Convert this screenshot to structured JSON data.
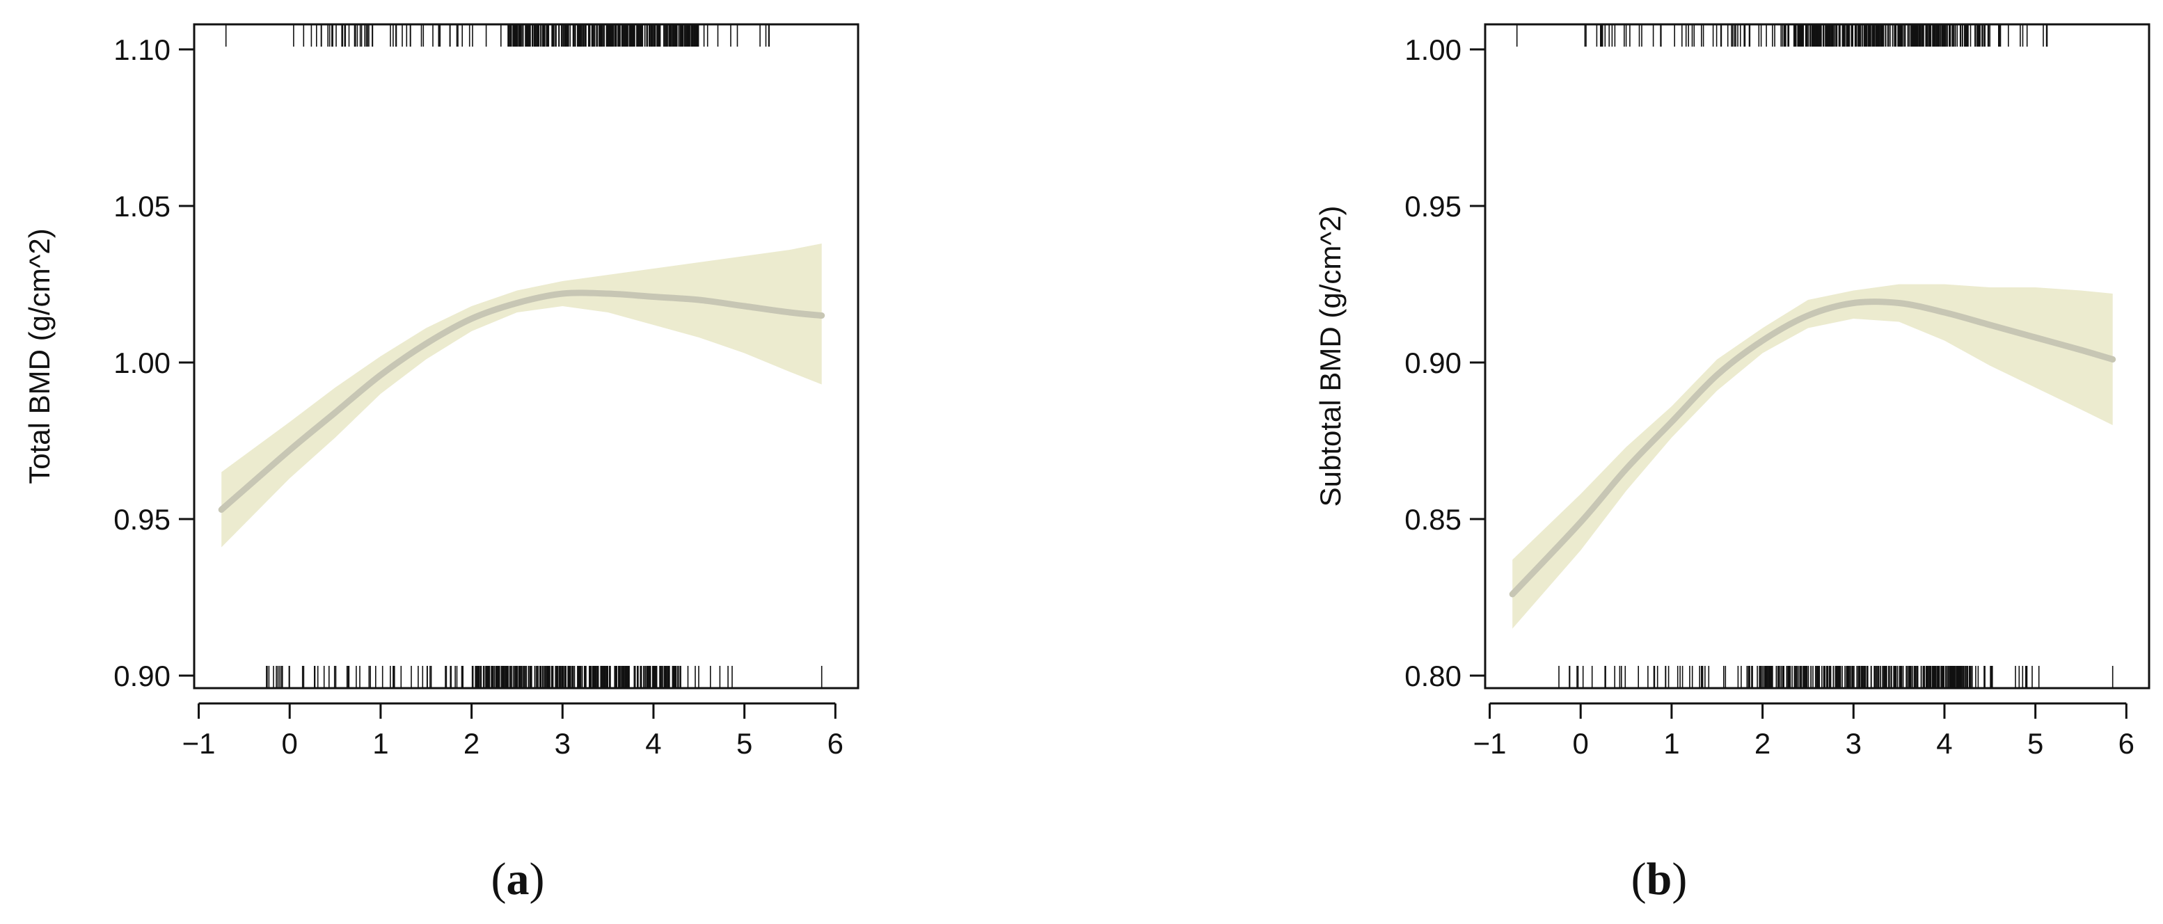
{
  "chart_data": [
    {
      "type": "line",
      "panel_label": "a",
      "xlabel": "",
      "ylabel": "Total BMD (g/cm^2)",
      "xlim": [
        -1.05,
        6.25
      ],
      "ylim": [
        0.896,
        1.108
      ],
      "x_ticks": [
        -1,
        0,
        1,
        2,
        3,
        4,
        5,
        6
      ],
      "x_tick_labels": [
        "−1",
        "0",
        "1",
        "2",
        "3",
        "4",
        "5",
        "6"
      ],
      "y_ticks": [
        0.9,
        0.95,
        1.0,
        1.05,
        1.1
      ],
      "y_tick_labels": [
        "0.90",
        "0.95",
        "1.00",
        "1.05",
        "1.10"
      ],
      "colors": {
        "fit": "#c7c6b4",
        "ci_band": "#ecebcf"
      },
      "series": [
        {
          "x": [
            -0.75,
            0,
            0.5,
            1,
            1.5,
            2,
            2.5,
            3,
            3.5,
            4,
            4.5,
            5,
            5.5,
            5.85
          ],
          "y": [
            0.953,
            0.972,
            0.984,
            0.996,
            1.006,
            1.014,
            1.019,
            1.022,
            1.022,
            1.021,
            1.02,
            1.018,
            1.016,
            1.015
          ],
          "lower": [
            0.941,
            0.963,
            0.976,
            0.99,
            1.001,
            1.01,
            1.016,
            1.018,
            1.016,
            1.012,
            1.008,
            1.003,
            0.997,
            0.993
          ],
          "upper": [
            0.965,
            0.981,
            0.992,
            1.002,
            1.011,
            1.018,
            1.023,
            1.026,
            1.028,
            1.03,
            1.032,
            1.034,
            1.036,
            1.038
          ]
        }
      ],
      "rug": {
        "top_range": [
          0,
          5.3
        ],
        "top_dense": [
          2.4,
          4.5
        ],
        "top_outliers": [
          -0.7
        ],
        "bottom_range": [
          -0.3,
          5.0
        ],
        "bottom_dense": [
          2.0,
          4.3
        ],
        "bottom_outliers": [
          5.85
        ]
      }
    },
    {
      "type": "line",
      "panel_label": "b",
      "xlabel": "",
      "ylabel": "Subtotal BMD (g/cm^2)",
      "xlim": [
        -1.05,
        6.25
      ],
      "ylim": [
        0.796,
        1.008
      ],
      "x_ticks": [
        -1,
        0,
        1,
        2,
        3,
        4,
        5,
        6
      ],
      "x_tick_labels": [
        "−1",
        "0",
        "1",
        "2",
        "3",
        "4",
        "5",
        "6"
      ],
      "y_ticks": [
        0.8,
        0.85,
        0.9,
        0.95,
        1.0
      ],
      "y_tick_labels": [
        "0.80",
        "0.85",
        "0.90",
        "0.95",
        "1.00"
      ],
      "colors": {
        "fit": "#c7c6b4",
        "ci_band": "#ecebcf"
      },
      "series": [
        {
          "x": [
            -0.75,
            0,
            0.5,
            1,
            1.5,
            2,
            2.5,
            3,
            3.5,
            4,
            4.5,
            5,
            5.5,
            5.85
          ],
          "y": [
            0.826,
            0.849,
            0.866,
            0.881,
            0.896,
            0.907,
            0.915,
            0.919,
            0.919,
            0.916,
            0.912,
            0.908,
            0.904,
            0.901
          ],
          "lower": [
            0.815,
            0.84,
            0.859,
            0.876,
            0.891,
            0.903,
            0.911,
            0.914,
            0.913,
            0.907,
            0.899,
            0.892,
            0.885,
            0.88
          ],
          "upper": [
            0.837,
            0.858,
            0.873,
            0.886,
            0.901,
            0.911,
            0.92,
            0.923,
            0.925,
            0.925,
            0.924,
            0.924,
            0.923,
            0.922
          ]
        }
      ],
      "rug": {
        "top_range": [
          0,
          5.3
        ],
        "top_dense": [
          2.2,
          4.5
        ],
        "top_outliers": [
          -0.7
        ],
        "bottom_range": [
          -0.35,
          5.1
        ],
        "bottom_dense": [
          2.0,
          4.3
        ],
        "bottom_outliers": [
          5.85
        ]
      }
    }
  ]
}
